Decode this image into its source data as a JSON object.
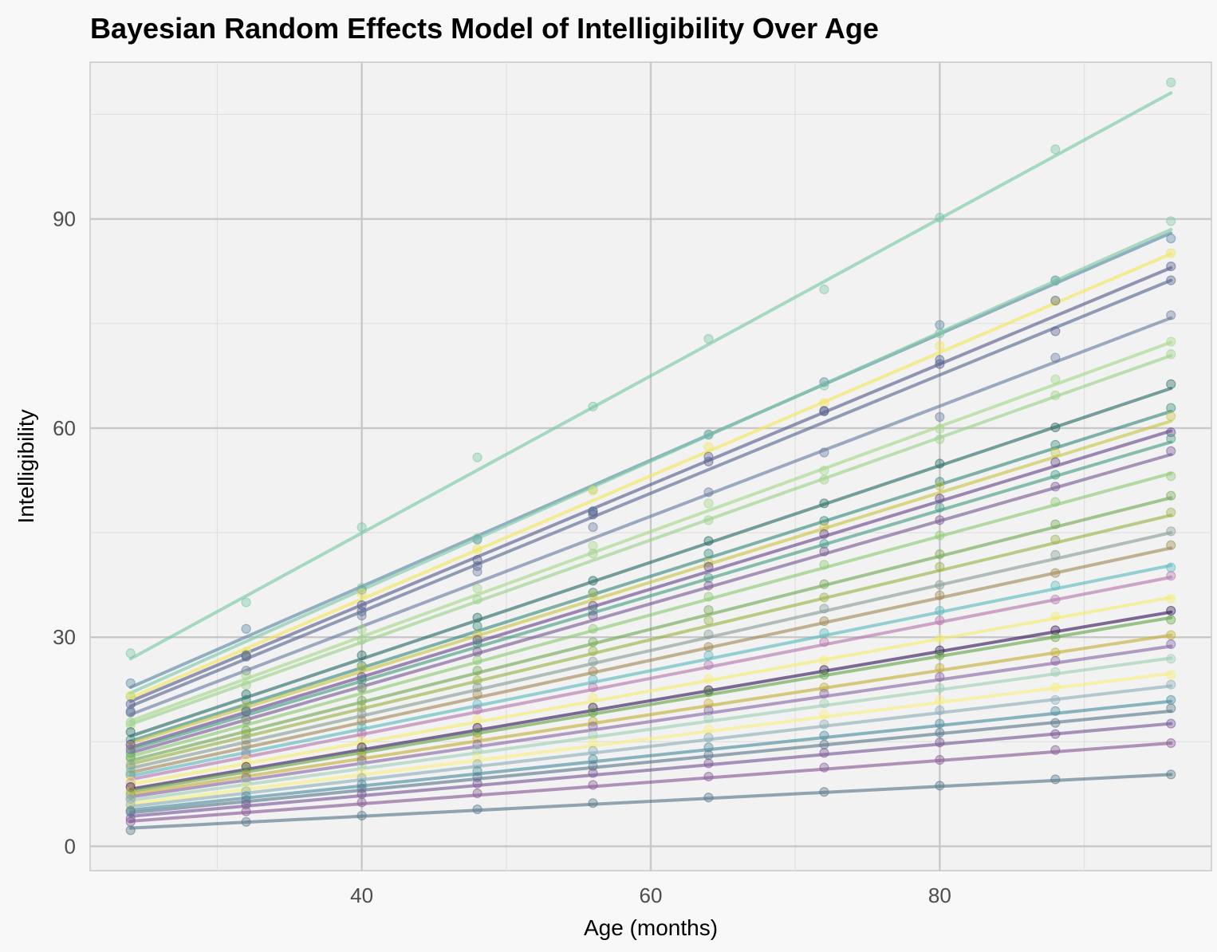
{
  "chart_data": {
    "type": "line",
    "title": "Bayesian Random Effects Model of Intelligibility Over Age",
    "xlabel": "Age (months)",
    "ylabel": "Intelligibility",
    "xlim": [
      21.2,
      98.8
    ],
    "ylim": [
      -3.5,
      112.5
    ],
    "x_ticks": [
      40,
      60,
      80
    ],
    "x_tick_labels": [
      "40",
      "60",
      "80"
    ],
    "y_ticks": [
      0,
      30,
      60,
      90
    ],
    "y_tick_labels": [
      "0",
      "30",
      "60",
      "90"
    ],
    "x_minor_ticks": [
      30,
      50,
      70,
      90
    ],
    "y_minor_ticks": [
      15,
      45,
      75,
      105
    ],
    "grid": true,
    "legend": "none",
    "observation_ages": [
      24,
      32,
      40,
      48,
      56,
      64,
      72,
      80,
      88,
      96
    ],
    "series": [
      {
        "color": "#7ac9a4",
        "start": 26.9,
        "end": 108.1,
        "points": [
          27.7,
          35.0,
          45.8,
          55.8,
          63.1,
          72.8,
          79.9,
          90.2,
          100.0,
          109.6
        ]
      },
      {
        "color": "#5d8aa8",
        "start": 22.8,
        "end": 88.0,
        "points": [
          23.4,
          31.2,
          36.8,
          44.0,
          48.1,
          59.1,
          66.6,
          74.8,
          81.2,
          87.2
        ]
      },
      {
        "color": "#7fc9a8",
        "start": 22.0,
        "end": 88.5,
        "points": [
          21.5,
          27.5,
          37.1,
          44.2,
          51.2,
          59.0,
          66.1,
          73.6,
          81.1,
          89.7
        ]
      },
      {
        "color": "#f2e55c",
        "start": 21.3,
        "end": 85.0,
        "points": [
          21.6,
          27.9,
          36.3,
          42.6,
          51.0,
          57.3,
          63.6,
          71.8,
          78.2,
          85.1
        ]
      },
      {
        "color": "#5a5f8f",
        "start": 20.8,
        "end": 83.0,
        "points": [
          20.4,
          27.4,
          34.6,
          41.1,
          47.6,
          55.2,
          62.4,
          69.2,
          73.9,
          83.2
        ]
      },
      {
        "color": "#5b6a94",
        "start": 20.1,
        "end": 81.2,
        "points": [
          19.2,
          27.2,
          33.7,
          40.2,
          48.0,
          55.9,
          62.5,
          69.8,
          78.3,
          81.2
        ]
      },
      {
        "color": "#6b7fa3",
        "start": 18.9,
        "end": 75.8,
        "points": [
          19.4,
          25.2,
          33.1,
          39.4,
          45.8,
          50.8,
          56.5,
          61.6,
          70.1,
          76.2
        ]
      },
      {
        "color": "#a6d98a",
        "start": 18.0,
        "end": 72.3,
        "points": [
          17.4,
          24.5,
          31.1,
          37.0,
          43.1,
          49.2,
          53.9,
          59.9,
          67.0,
          72.4
        ]
      },
      {
        "color": "#9dd38c",
        "start": 17.5,
        "end": 70.4,
        "points": [
          17.8,
          23.1,
          29.6,
          35.4,
          42.0,
          46.8,
          52.6,
          58.4,
          64.7,
          70.6
        ]
      },
      {
        "color": "#2e6e6a",
        "start": 15.8,
        "end": 65.7,
        "points": [
          16.4,
          21.8,
          27.4,
          32.8,
          38.1,
          43.8,
          49.2,
          54.9,
          60.1,
          66.3
        ]
      },
      {
        "color": "#3d8d7e",
        "start": 15.1,
        "end": 62.4,
        "points": [
          15.3,
          21.0,
          25.9,
          31.6,
          36.4,
          42.0,
          46.7,
          52.3,
          57.6,
          62.9
        ]
      },
      {
        "color": "#c9c54a",
        "start": 14.8,
        "end": 61.0,
        "points": [
          14.4,
          20.1,
          25.6,
          30.3,
          36.0,
          40.7,
          45.8,
          51.7,
          56.5,
          61.7
        ]
      },
      {
        "color": "#6a4c8c",
        "start": 14.2,
        "end": 59.6,
        "points": [
          14.6,
          19.3,
          24.3,
          29.6,
          34.5,
          40.1,
          44.8,
          49.9,
          55.1,
          59.4
        ]
      },
      {
        "color": "#4a9e86",
        "start": 13.9,
        "end": 58.0,
        "points": [
          13.4,
          19.5,
          23.8,
          29.1,
          33.8,
          38.5,
          43.4,
          48.6,
          53.3,
          58.5
        ]
      },
      {
        "color": "#7c5e96",
        "start": 13.4,
        "end": 56.2,
        "points": [
          13.9,
          18.2,
          22.8,
          27.9,
          33.1,
          37.4,
          42.3,
          46.8,
          51.6,
          56.7
        ]
      },
      {
        "color": "#8fcb76",
        "start": 12.9,
        "end": 53.5,
        "points": [
          12.6,
          17.9,
          22.6,
          26.7,
          31.2,
          35.8,
          40.4,
          44.6,
          49.4,
          53.1
        ]
      },
      {
        "color": "#74aa58",
        "start": 12.3,
        "end": 50.0,
        "points": [
          12.8,
          16.6,
          20.9,
          25.2,
          29.3,
          33.9,
          37.6,
          41.9,
          46.2,
          50.3
        ]
      },
      {
        "color": "#9ab44a",
        "start": 11.8,
        "end": 47.5,
        "points": [
          11.3,
          16.1,
          19.9,
          23.8,
          28.0,
          32.4,
          35.7,
          40.1,
          44.0,
          47.9
        ]
      },
      {
        "color": "#8aa09a",
        "start": 11.2,
        "end": 45.0,
        "points": [
          11.7,
          15.3,
          19.0,
          22.8,
          26.5,
          30.4,
          34.1,
          37.5,
          41.8,
          45.2
        ]
      },
      {
        "color": "#a28c5a",
        "start": 10.6,
        "end": 42.8,
        "points": [
          10.2,
          14.5,
          18.0,
          21.8,
          25.1,
          28.6,
          32.3,
          36.0,
          39.2,
          43.2
        ]
      },
      {
        "color": "#5fbcc0",
        "start": 10.1,
        "end": 40.3,
        "points": [
          10.6,
          13.6,
          17.1,
          20.4,
          23.9,
          27.4,
          30.6,
          33.8,
          37.4,
          40.0
        ]
      },
      {
        "color": "#b77ab0",
        "start": 9.6,
        "end": 38.6,
        "points": [
          9.1,
          13.2,
          16.2,
          19.6,
          22.8,
          26.0,
          29.3,
          32.4,
          35.4,
          38.8
        ]
      },
      {
        "color": "#f5ec70",
        "start": 8.9,
        "end": 35.7,
        "points": [
          9.3,
          12.4,
          15.1,
          18.2,
          21.3,
          24.0,
          26.7,
          29.8,
          33.0,
          35.5
        ]
      },
      {
        "color": "#3b1f5c",
        "start": 8.2,
        "end": 33.6,
        "points": [
          8.5,
          11.4,
          14.2,
          17.0,
          19.9,
          22.4,
          25.3,
          28.1,
          31.0,
          33.8
        ]
      },
      {
        "color": "#6aa84f",
        "start": 7.9,
        "end": 32.8,
        "points": [
          7.4,
          11.0,
          13.5,
          16.3,
          19.2,
          22.1,
          24.6,
          27.4,
          30.0,
          32.5
        ]
      },
      {
        "color": "#c5b13d",
        "start": 7.5,
        "end": 30.3,
        "points": [
          7.9,
          10.3,
          12.9,
          15.5,
          17.9,
          20.5,
          22.8,
          25.6,
          27.8,
          30.3
        ]
      },
      {
        "color": "#8a6aa8",
        "start": 7.1,
        "end": 28.7,
        "points": [
          6.8,
          9.8,
          12.3,
          14.6,
          17.2,
          19.5,
          21.9,
          24.3,
          26.6,
          29.0
        ]
      },
      {
        "color": "#9fd0b5",
        "start": 6.6,
        "end": 27.0,
        "points": [
          6.9,
          9.3,
          11.6,
          13.8,
          16.0,
          18.4,
          20.5,
          22.7,
          25.0,
          26.9
        ]
      },
      {
        "color": "#f7ee80",
        "start": 6.1,
        "end": 24.8,
        "points": [
          5.8,
          8.5,
          10.5,
          12.7,
          14.9,
          16.8,
          18.9,
          21.0,
          22.8,
          24.6
        ]
      },
      {
        "color": "#8fb0ba",
        "start": 5.7,
        "end": 23.0,
        "points": [
          6.0,
          7.9,
          9.8,
          11.8,
          13.7,
          15.6,
          17.5,
          19.5,
          21.0,
          23.2
        ]
      },
      {
        "color": "#4f8fa0",
        "start": 5.2,
        "end": 20.8,
        "points": [
          4.9,
          7.2,
          8.9,
          10.8,
          12.5,
          14.2,
          15.9,
          17.6,
          19.4,
          21.0
        ]
      },
      {
        "color": "#5e7b8e",
        "start": 4.8,
        "end": 19.4,
        "points": [
          5.1,
          6.6,
          8.3,
          9.9,
          11.5,
          13.1,
          14.6,
          16.3,
          17.7,
          19.8
        ]
      },
      {
        "color": "#7a5a98",
        "start": 4.3,
        "end": 17.6,
        "points": [
          4.0,
          6.0,
          7.5,
          9.0,
          10.5,
          11.9,
          13.4,
          14.9,
          16.1,
          17.6
        ]
      },
      {
        "color": "#8a5c96",
        "start": 3.6,
        "end": 14.8,
        "points": [
          3.5,
          5.0,
          6.3,
          7.6,
          8.8,
          10.0,
          11.3,
          12.4,
          13.8,
          14.8
        ]
      },
      {
        "color": "#5a7a8c",
        "start": 2.6,
        "end": 10.3,
        "points": [
          2.3,
          3.5,
          4.4,
          5.3,
          6.2,
          7.0,
          7.8,
          8.7,
          9.6,
          10.3
        ]
      }
    ]
  }
}
